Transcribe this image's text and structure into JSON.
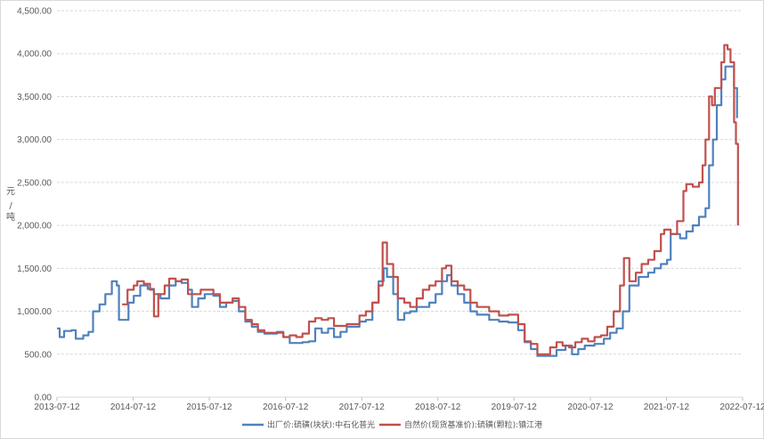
{
  "chart_data": {
    "type": "line",
    "title": "",
    "ylabel": "元/吨",
    "ylim": [
      0,
      4500
    ],
    "yticks": [
      "0.00",
      "500.00",
      "1,000.00",
      "1,500.00",
      "2,000.00",
      "2,500.00",
      "3,000.00",
      "3,500.00",
      "4,000.00",
      "4,500.00"
    ],
    "x_ticks": [
      "2013-07-12",
      "2014-07-12",
      "2015-07-12",
      "2016-07-12",
      "2017-07-12",
      "2018-07-12",
      "2019-07-12",
      "2020-07-12",
      "2021-07-12",
      "2022-07-12"
    ],
    "grid": "horizontal",
    "legend_position": "bottom",
    "series": [
      {
        "name": "出厂价:硫磺(块状):中石化普光",
        "color": "#4f81bd",
        "points": [
          [
            "2013-07-12",
            800
          ],
          [
            "2013-07-25",
            700
          ],
          [
            "2013-08-15",
            770
          ],
          [
            "2013-09-20",
            780
          ],
          [
            "2013-10-10",
            680
          ],
          [
            "2013-11-15",
            720
          ],
          [
            "2013-12-10",
            760
          ],
          [
            "2014-01-01",
            1000
          ],
          [
            "2014-02-01",
            1080
          ],
          [
            "2014-03-01",
            1200
          ],
          [
            "2014-04-01",
            1350
          ],
          [
            "2014-04-25",
            1300
          ],
          [
            "2014-05-05",
            900
          ],
          [
            "2014-06-01",
            900
          ],
          [
            "2014-06-20",
            1100
          ],
          [
            "2014-07-15",
            1180
          ],
          [
            "2014-08-15",
            1300
          ],
          [
            "2014-09-20",
            1260
          ],
          [
            "2014-10-20",
            1200
          ],
          [
            "2014-11-20",
            1150
          ],
          [
            "2015-01-01",
            1300
          ],
          [
            "2015-02-01",
            1350
          ],
          [
            "2015-03-01",
            1330
          ],
          [
            "2015-04-01",
            1250
          ],
          [
            "2015-04-20",
            1050
          ],
          [
            "2015-05-20",
            1150
          ],
          [
            "2015-06-20",
            1200
          ],
          [
            "2015-08-01",
            1180
          ],
          [
            "2015-09-01",
            1050
          ],
          [
            "2015-10-01",
            1100
          ],
          [
            "2015-11-01",
            1120
          ],
          [
            "2015-12-01",
            1000
          ],
          [
            "2016-01-01",
            880
          ],
          [
            "2016-02-01",
            820
          ],
          [
            "2016-03-01",
            760
          ],
          [
            "2016-04-01",
            740
          ],
          [
            "2016-06-01",
            760
          ],
          [
            "2016-07-01",
            700
          ],
          [
            "2016-08-01",
            630
          ],
          [
            "2016-10-01",
            640
          ],
          [
            "2016-11-01",
            650
          ],
          [
            "2016-12-01",
            800
          ],
          [
            "2017-01-01",
            750
          ],
          [
            "2017-02-01",
            800
          ],
          [
            "2017-03-01",
            700
          ],
          [
            "2017-04-01",
            760
          ],
          [
            "2017-05-01",
            820
          ],
          [
            "2017-07-01",
            880
          ],
          [
            "2017-08-01",
            900
          ],
          [
            "2017-09-01",
            1100
          ],
          [
            "2017-10-01",
            1350
          ],
          [
            "2017-10-25",
            1500
          ],
          [
            "2017-11-10",
            1400
          ],
          [
            "2017-12-10",
            1200
          ],
          [
            "2018-01-01",
            900
          ],
          [
            "2018-02-01",
            980
          ],
          [
            "2018-03-01",
            1000
          ],
          [
            "2018-04-01",
            1050
          ],
          [
            "2018-06-01",
            1100
          ],
          [
            "2018-07-01",
            1200
          ],
          [
            "2018-08-01",
            1350
          ],
          [
            "2018-08-25",
            1420
          ],
          [
            "2018-09-15",
            1300
          ],
          [
            "2018-10-15",
            1200
          ],
          [
            "2018-11-15",
            1100
          ],
          [
            "2018-12-15",
            1000
          ],
          [
            "2019-01-15",
            960
          ],
          [
            "2019-03-15",
            900
          ],
          [
            "2019-05-01",
            880
          ],
          [
            "2019-06-15",
            870
          ],
          [
            "2019-08-01",
            780
          ],
          [
            "2019-09-01",
            640
          ],
          [
            "2019-10-01",
            560
          ],
          [
            "2019-11-01",
            480
          ],
          [
            "2019-12-15",
            480
          ],
          [
            "2020-02-01",
            550
          ],
          [
            "2020-03-15",
            600
          ],
          [
            "2020-04-15",
            500
          ],
          [
            "2020-05-15",
            560
          ],
          [
            "2020-06-15",
            600
          ],
          [
            "2020-08-01",
            620
          ],
          [
            "2020-09-15",
            680
          ],
          [
            "2020-10-15",
            750
          ],
          [
            "2020-11-15",
            800
          ],
          [
            "2020-12-15",
            1000
          ],
          [
            "2021-01-15",
            1300
          ],
          [
            "2021-03-01",
            1400
          ],
          [
            "2021-04-15",
            1450
          ],
          [
            "2021-05-15",
            1500
          ],
          [
            "2021-06-15",
            1550
          ],
          [
            "2021-07-15",
            1600
          ],
          [
            "2021-08-01",
            1900
          ],
          [
            "2021-09-15",
            1850
          ],
          [
            "2021-10-15",
            1930
          ],
          [
            "2021-11-15",
            2000
          ],
          [
            "2021-12-15",
            2100
          ],
          [
            "2022-01-15",
            2200
          ],
          [
            "2022-02-01",
            2700
          ],
          [
            "2022-02-20",
            3000
          ],
          [
            "2022-03-10",
            3400
          ],
          [
            "2022-04-01",
            3700
          ],
          [
            "2022-04-20",
            3850
          ],
          [
            "2022-05-15",
            3850
          ],
          [
            "2022-06-01",
            3600
          ],
          [
            "2022-06-15",
            3250
          ]
        ]
      },
      {
        "name": "自然价(现货基准价):硫磺(颗粒):镇江港",
        "color": "#c0504d",
        "points": [
          [
            "2014-05-20",
            1080
          ],
          [
            "2014-06-15",
            1250
          ],
          [
            "2014-07-15",
            1300
          ],
          [
            "2014-08-01",
            1350
          ],
          [
            "2014-09-01",
            1320
          ],
          [
            "2014-10-01",
            1250
          ],
          [
            "2014-10-20",
            940
          ],
          [
            "2014-11-10",
            1200
          ],
          [
            "2014-12-10",
            1300
          ],
          [
            "2015-01-01",
            1380
          ],
          [
            "2015-02-01",
            1350
          ],
          [
            "2015-03-01",
            1370
          ],
          [
            "2015-04-01",
            1200
          ],
          [
            "2015-05-01",
            1200
          ],
          [
            "2015-06-01",
            1250
          ],
          [
            "2015-07-01",
            1250
          ],
          [
            "2015-08-01",
            1200
          ],
          [
            "2015-09-01",
            1100
          ],
          [
            "2015-10-01",
            1100
          ],
          [
            "2015-11-01",
            1150
          ],
          [
            "2015-12-01",
            1050
          ],
          [
            "2016-01-01",
            900
          ],
          [
            "2016-02-01",
            850
          ],
          [
            "2016-03-01",
            780
          ],
          [
            "2016-04-01",
            750
          ],
          [
            "2016-06-01",
            750
          ],
          [
            "2016-07-01",
            700
          ],
          [
            "2016-08-01",
            720
          ],
          [
            "2016-09-01",
            700
          ],
          [
            "2016-10-01",
            740
          ],
          [
            "2016-11-01",
            880
          ],
          [
            "2016-12-01",
            920
          ],
          [
            "2017-01-01",
            900
          ],
          [
            "2017-02-01",
            920
          ],
          [
            "2017-03-01",
            830
          ],
          [
            "2017-05-01",
            850
          ],
          [
            "2017-07-01",
            950
          ],
          [
            "2017-08-01",
            1000
          ],
          [
            "2017-09-01",
            1100
          ],
          [
            "2017-10-01",
            1300
          ],
          [
            "2017-10-20",
            1800
          ],
          [
            "2017-11-10",
            1550
          ],
          [
            "2017-12-10",
            1400
          ],
          [
            "2018-01-01",
            1150
          ],
          [
            "2018-02-01",
            1100
          ],
          [
            "2018-03-01",
            1050
          ],
          [
            "2018-04-01",
            1150
          ],
          [
            "2018-05-01",
            1250
          ],
          [
            "2018-06-01",
            1300
          ],
          [
            "2018-07-01",
            1350
          ],
          [
            "2018-08-01",
            1500
          ],
          [
            "2018-08-20",
            1530
          ],
          [
            "2018-09-15",
            1350
          ],
          [
            "2018-10-15",
            1300
          ],
          [
            "2018-11-15",
            1250
          ],
          [
            "2018-12-15",
            1100
          ],
          [
            "2019-01-15",
            1050
          ],
          [
            "2019-03-15",
            1000
          ],
          [
            "2019-05-01",
            950
          ],
          [
            "2019-06-15",
            960
          ],
          [
            "2019-08-01",
            850
          ],
          [
            "2019-09-01",
            650
          ],
          [
            "2019-10-01",
            620
          ],
          [
            "2019-11-01",
            500
          ],
          [
            "2019-12-01",
            500
          ],
          [
            "2020-01-01",
            580
          ],
          [
            "2020-02-01",
            640
          ],
          [
            "2020-03-01",
            600
          ],
          [
            "2020-04-01",
            580
          ],
          [
            "2020-05-01",
            640
          ],
          [
            "2020-06-01",
            680
          ],
          [
            "2020-07-01",
            650
          ],
          [
            "2020-08-01",
            700
          ],
          [
            "2020-09-01",
            720
          ],
          [
            "2020-10-01",
            820
          ],
          [
            "2020-11-01",
            1000
          ],
          [
            "2020-12-01",
            1300
          ],
          [
            "2020-12-20",
            1620
          ],
          [
            "2021-01-15",
            1350
          ],
          [
            "2021-02-15",
            1450
          ],
          [
            "2021-03-15",
            1550
          ],
          [
            "2021-04-15",
            1600
          ],
          [
            "2021-05-15",
            1700
          ],
          [
            "2021-06-15",
            1900
          ],
          [
            "2021-07-01",
            1950
          ],
          [
            "2021-08-01",
            1900
          ],
          [
            "2021-09-01",
            2050
          ],
          [
            "2021-10-01",
            2400
          ],
          [
            "2021-10-15",
            2480
          ],
          [
            "2021-11-15",
            2450
          ],
          [
            "2021-12-15",
            2500
          ],
          [
            "2022-01-01",
            2700
          ],
          [
            "2022-01-15",
            3000
          ],
          [
            "2022-02-01",
            3500
          ],
          [
            "2022-02-15",
            3400
          ],
          [
            "2022-03-01",
            3600
          ],
          [
            "2022-04-01",
            3900
          ],
          [
            "2022-04-15",
            4100
          ],
          [
            "2022-05-01",
            4050
          ],
          [
            "2022-05-15",
            3900
          ],
          [
            "2022-06-01",
            3200
          ],
          [
            "2022-06-10",
            2950
          ],
          [
            "2022-06-20",
            2000
          ]
        ]
      }
    ]
  }
}
